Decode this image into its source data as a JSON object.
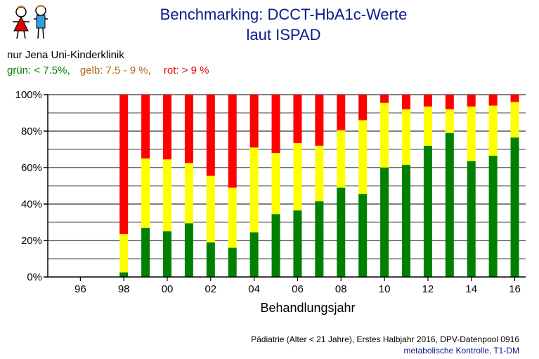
{
  "title_line1": "Benchmarking: DCCT-HbA1c-Werte",
  "title_line2": "laut ISPAD",
  "subtitle": "nur Jena Uni-Kinderklinik",
  "legend": {
    "green": "grün: < 7.5%,",
    "yellow": "gelb: 7.5 - 9 %,",
    "red": "rot: > 9 %"
  },
  "footer_line1": "Pädiatrie (Alter < 21 Jahre), Erstes Halbjahr 2016, DPV-Datenpool 0916",
  "footer_line2": "metabolische Kontrolle, T1-DM",
  "colors": {
    "green": "#008000",
    "yellow": "#ffff00",
    "red": "#ff0000",
    "title": "#0b1a8c"
  },
  "chart_data": {
    "type": "bar",
    "stacked": true,
    "xlabel": "Behandlungsjahr",
    "ylabel": "",
    "ylim": [
      0,
      100
    ],
    "yticks": [
      "0%",
      "20%",
      "40%",
      "60%",
      "80%",
      "100%"
    ],
    "x_tick_labels": [
      "96",
      "98",
      "00",
      "02",
      "04",
      "06",
      "08",
      "10",
      "12",
      "14",
      "16"
    ],
    "categories": [
      1995,
      1996,
      1997,
      1998,
      1999,
      2000,
      2001,
      2002,
      2003,
      2004,
      2005,
      2006,
      2007,
      2008,
      2009,
      2010,
      2011,
      2012,
      2013,
      2014,
      2015,
      2016
    ],
    "series": [
      {
        "name": "grün",
        "color": "#008000",
        "values": [
          0,
          0,
          0,
          2.5,
          27,
          25,
          29.5,
          19,
          16,
          24.5,
          34.5,
          36.5,
          41.5,
          49,
          45.5,
          60,
          61.5,
          72,
          79,
          63.5,
          66.5,
          76.5
        ]
      },
      {
        "name": "gelb",
        "color": "#ffff00",
        "values": [
          0,
          0,
          0,
          21,
          38,
          39.5,
          33,
          36.5,
          33,
          46.5,
          33.5,
          37,
          30.5,
          31.5,
          40.5,
          35.5,
          30.5,
          21.5,
          13,
          30,
          27.5,
          19.5
        ]
      },
      {
        "name": "rot",
        "color": "#ff0000",
        "values": [
          0,
          0,
          0,
          76.5,
          35,
          35.5,
          37.5,
          44.5,
          51,
          29,
          32,
          26.5,
          28,
          19.5,
          14,
          4.5,
          8,
          6.5,
          8,
          6.5,
          6,
          4
        ]
      }
    ],
    "grid": true
  }
}
